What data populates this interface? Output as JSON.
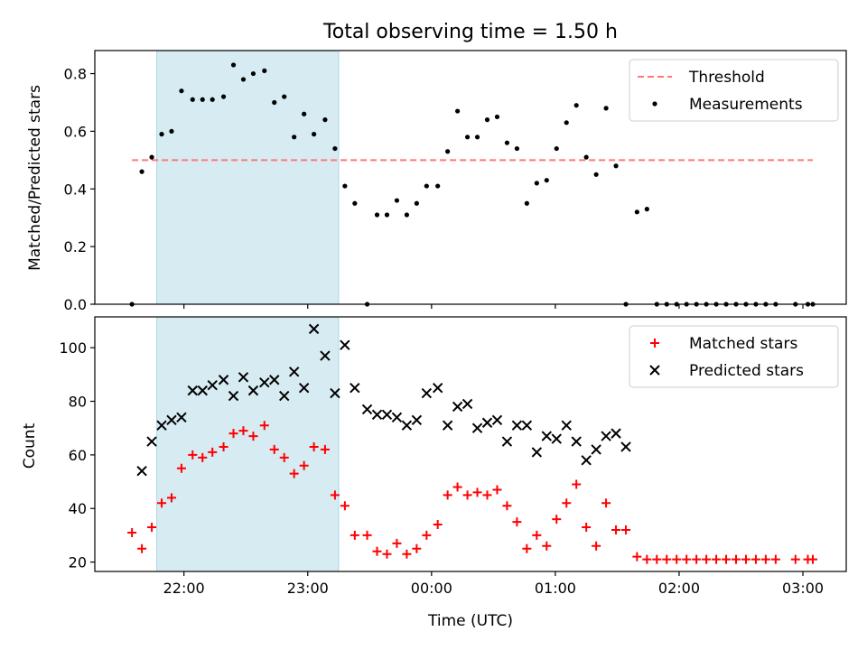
{
  "chart_data": {
    "title": "Total observing time = 1.50 h",
    "xlabel": "Time (UTC)",
    "x_unit": "hours UTC (past midnight > 24)",
    "x_ticks": [
      {
        "value": 22,
        "label": "22:00"
      },
      {
        "value": 23,
        "label": "23:00"
      },
      {
        "value": 24,
        "label": "00:00"
      },
      {
        "value": 25,
        "label": "01:00"
      },
      {
        "value": 26,
        "label": "02:00"
      },
      {
        "value": 27,
        "label": "03:00"
      }
    ],
    "xlim": [
      21.28,
      27.35
    ],
    "highlight_span": {
      "start": 21.78,
      "end": 23.25,
      "color": "#add8e6"
    },
    "top": {
      "type": "scatter",
      "ylabel": "Matched/Predicted stars",
      "ylim": [
        0,
        0.88
      ],
      "yticks": [
        "0.0",
        "0.2",
        "0.4",
        "0.6",
        "0.8"
      ],
      "ytick_values": [
        0,
        0.2,
        0.4,
        0.6,
        0.8
      ],
      "threshold": {
        "name": "Threshold",
        "value": 0.5,
        "x_start": 21.58,
        "x_end": 27.08,
        "color": "#ff7878"
      },
      "series": [
        {
          "name": "Measurements",
          "color": "#000000",
          "marker": "dot",
          "x": [
            21.58,
            21.66,
            21.74,
            21.82,
            21.9,
            21.98,
            22.07,
            22.15,
            22.23,
            22.32,
            22.4,
            22.48,
            22.56,
            22.65,
            22.73,
            22.81,
            22.89,
            22.97,
            23.05,
            23.14,
            23.22,
            23.3,
            23.38,
            23.48,
            23.56,
            23.64,
            23.72,
            23.8,
            23.88,
            23.96,
            24.05,
            24.13,
            24.21,
            24.29,
            24.37,
            24.45,
            24.53,
            24.61,
            24.69,
            24.77,
            24.85,
            24.93,
            25.01,
            25.09,
            25.17,
            25.25,
            25.33,
            25.41,
            25.49,
            25.57,
            25.66,
            25.74,
            25.82,
            25.9,
            25.98,
            26.06,
            26.14,
            26.22,
            26.3,
            26.38,
            26.46,
            26.54,
            26.62,
            26.7,
            26.78,
            26.94,
            27.04,
            27.08
          ],
          "y": [
            0.0,
            0.46,
            0.51,
            0.59,
            0.6,
            0.74,
            0.71,
            0.71,
            0.71,
            0.72,
            0.83,
            0.78,
            0.8,
            0.81,
            0.7,
            0.72,
            0.58,
            0.66,
            0.59,
            0.64,
            0.54,
            0.41,
            0.35,
            0.0,
            0.31,
            0.31,
            0.36,
            0.31,
            0.35,
            0.41,
            0.41,
            0.53,
            0.67,
            0.58,
            0.58,
            0.64,
            0.65,
            0.56,
            0.54,
            0.35,
            0.42,
            0.43,
            0.54,
            0.63,
            0.69,
            0.51,
            0.45,
            0.68,
            0.48,
            0.0,
            0.32,
            0.33,
            0.0,
            0.0,
            0.0,
            0.0,
            0.0,
            0.0,
            0.0,
            0.0,
            0.0,
            0.0,
            0.0,
            0.0,
            0.0,
            0.0,
            0.0,
            0.0
          ]
        }
      ],
      "legend": {
        "position": "upper right"
      }
    },
    "bottom": {
      "type": "scatter",
      "ylabel": "Count",
      "ylim": [
        16.5,
        111.5
      ],
      "yticks": [
        "20",
        "40",
        "60",
        "80",
        "100"
      ],
      "ytick_values": [
        20,
        40,
        60,
        80,
        100
      ],
      "series": [
        {
          "name": "Matched stars",
          "color": "#ff0000",
          "marker": "plus",
          "x": [
            21.58,
            21.66,
            21.74,
            21.82,
            21.9,
            21.98,
            22.07,
            22.15,
            22.23,
            22.32,
            22.4,
            22.48,
            22.56,
            22.65,
            22.73,
            22.81,
            22.89,
            22.97,
            23.05,
            23.14,
            23.22,
            23.3,
            23.38,
            23.48,
            23.56,
            23.64,
            23.72,
            23.8,
            23.88,
            23.96,
            24.05,
            24.13,
            24.21,
            24.29,
            24.37,
            24.45,
            24.53,
            24.61,
            24.69,
            24.77,
            24.85,
            24.93,
            25.01,
            25.09,
            25.17,
            25.25,
            25.33,
            25.41,
            25.49,
            25.57,
            25.66,
            25.74,
            25.82,
            25.9,
            25.98,
            26.06,
            26.14,
            26.22,
            26.3,
            26.38,
            26.46,
            26.54,
            26.62,
            26.7,
            26.78,
            26.94,
            27.04,
            27.08
          ],
          "y": [
            31,
            25,
            33,
            42,
            44,
            55,
            60,
            59,
            61,
            63,
            68,
            69,
            67,
            71,
            62,
            59,
            53,
            56,
            63,
            62,
            45,
            41,
            30,
            30,
            24,
            23,
            27,
            23,
            25,
            30,
            34,
            45,
            48,
            45,
            46,
            45,
            47,
            41,
            35,
            25,
            30,
            26,
            36,
            42,
            49,
            33,
            26,
            42,
            32,
            32,
            22,
            21,
            21,
            21,
            21,
            21,
            21,
            21,
            21,
            21,
            21,
            21,
            21,
            21,
            21,
            21,
            21,
            21
          ]
        },
        {
          "name": "Predicted stars",
          "color": "#000000",
          "marker": "x",
          "x": [
            21.66,
            21.74,
            21.82,
            21.9,
            21.98,
            22.07,
            22.15,
            22.23,
            22.32,
            22.4,
            22.48,
            22.56,
            22.65,
            22.73,
            22.81,
            22.89,
            22.97,
            23.05,
            23.14,
            23.22,
            23.3,
            23.38,
            23.48,
            23.56,
            23.64,
            23.72,
            23.8,
            23.88,
            23.96,
            24.05,
            24.13,
            24.21,
            24.29,
            24.37,
            24.45,
            24.53,
            24.61,
            24.69,
            24.77,
            24.85,
            24.93,
            25.01,
            25.09,
            25.17,
            25.25,
            25.33,
            25.41,
            25.49,
            25.57,
            25.66,
            25.74
          ],
          "y": [
            54,
            65,
            71,
            73,
            74,
            84,
            84,
            86,
            88,
            82,
            89,
            84,
            87,
            88,
            82,
            91,
            85,
            107,
            97,
            83,
            101,
            85,
            77,
            75,
            75,
            74,
            71,
            73,
            83,
            85,
            71,
            78,
            79,
            70,
            72,
            73,
            65,
            71,
            71,
            61,
            67,
            66,
            71,
            65,
            58,
            62,
            67,
            68,
            63,
            null,
            null
          ]
        }
      ],
      "legend": {
        "position": "upper right"
      }
    }
  }
}
